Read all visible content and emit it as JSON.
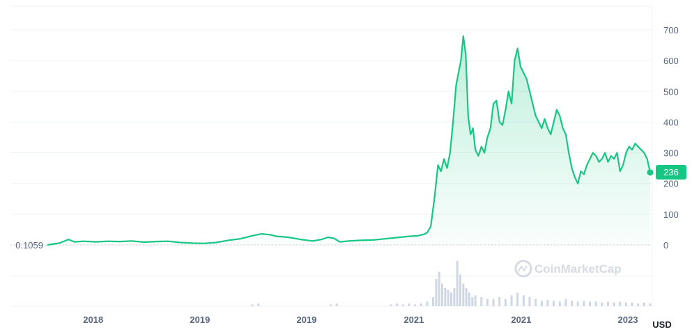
{
  "chart_data": {
    "type": "area",
    "title": "",
    "xlabel": "",
    "ylabel": "",
    "currency": "USD",
    "watermark": "CoinMarketCap",
    "start_label": "0.1059",
    "last_value_label": "236",
    "ylim": [
      -200,
      760
    ],
    "y_ticks": [
      0,
      100,
      200,
      300,
      400,
      500,
      600,
      700
    ],
    "x_tick_labels": [
      "2018",
      "2019",
      "2019",
      "2021",
      "2021",
      "2023"
    ],
    "x_range": [
      0,
      100
    ],
    "x_ticks": [
      7.6,
      25.3,
      43.0,
      60.8,
      78.6,
      96.3
    ],
    "colors": {
      "line": "#16c784",
      "badge": "#16c784",
      "volume": "#cfd6e4",
      "grid": "#eff2f5"
    },
    "series": [
      {
        "values": [
          [
            0,
            0
          ],
          [
            2,
            6
          ],
          [
            3.5,
            18
          ],
          [
            4.5,
            10
          ],
          [
            6,
            12
          ],
          [
            8,
            10
          ],
          [
            10,
            12
          ],
          [
            12,
            11
          ],
          [
            14,
            13
          ],
          [
            16,
            9
          ],
          [
            18,
            11
          ],
          [
            20,
            12
          ],
          [
            22,
            8
          ],
          [
            24,
            6
          ],
          [
            26,
            5
          ],
          [
            28,
            8
          ],
          [
            30,
            15
          ],
          [
            32,
            20
          ],
          [
            34,
            30
          ],
          [
            35.5,
            36
          ],
          [
            37,
            33
          ],
          [
            38,
            28
          ],
          [
            40,
            25
          ],
          [
            42,
            18
          ],
          [
            44,
            13
          ],
          [
            45.5,
            18
          ],
          [
            46.5,
            25
          ],
          [
            47.5,
            22
          ],
          [
            48.5,
            10
          ],
          [
            50,
            13
          ],
          [
            52,
            15
          ],
          [
            54,
            16
          ],
          [
            56,
            20
          ],
          [
            58,
            24
          ],
          [
            60,
            28
          ],
          [
            61.5,
            30
          ],
          [
            62.5,
            35
          ],
          [
            63,
            40
          ],
          [
            63.6,
            60
          ],
          [
            64.2,
            150
          ],
          [
            64.8,
            260
          ],
          [
            65.3,
            240
          ],
          [
            65.8,
            280
          ],
          [
            66.3,
            250
          ],
          [
            66.8,
            300
          ],
          [
            67.3,
            400
          ],
          [
            67.8,
            520
          ],
          [
            68.2,
            560
          ],
          [
            68.6,
            600
          ],
          [
            69,
            680
          ],
          [
            69.4,
            620
          ],
          [
            69.8,
            420
          ],
          [
            70.2,
            360
          ],
          [
            70.6,
            380
          ],
          [
            71,
            310
          ],
          [
            71.5,
            290
          ],
          [
            72,
            320
          ],
          [
            72.5,
            300
          ],
          [
            73,
            350
          ],
          [
            73.5,
            380
          ],
          [
            74,
            460
          ],
          [
            74.5,
            470
          ],
          [
            75,
            400
          ],
          [
            75.5,
            390
          ],
          [
            76,
            440
          ],
          [
            76.5,
            500
          ],
          [
            77,
            460
          ],
          [
            77.5,
            600
          ],
          [
            78,
            640
          ],
          [
            78.5,
            580
          ],
          [
            79,
            560
          ],
          [
            79.5,
            540
          ],
          [
            80,
            500
          ],
          [
            80.5,
            460
          ],
          [
            81,
            420
          ],
          [
            81.5,
            400
          ],
          [
            82,
            380
          ],
          [
            82.5,
            410
          ],
          [
            83,
            380
          ],
          [
            83.5,
            360
          ],
          [
            84,
            400
          ],
          [
            84.5,
            440
          ],
          [
            85,
            420
          ],
          [
            85.5,
            380
          ],
          [
            86,
            360
          ],
          [
            86.5,
            300
          ],
          [
            87,
            250
          ],
          [
            87.5,
            220
          ],
          [
            88,
            200
          ],
          [
            88.5,
            240
          ],
          [
            89,
            230
          ],
          [
            89.5,
            260
          ],
          [
            90,
            280
          ],
          [
            90.5,
            300
          ],
          [
            91,
            290
          ],
          [
            91.5,
            270
          ],
          [
            92,
            280
          ],
          [
            92.5,
            300
          ],
          [
            93,
            270
          ],
          [
            93.5,
            290
          ],
          [
            94,
            280
          ],
          [
            94.5,
            300
          ],
          [
            95,
            240
          ],
          [
            95.5,
            260
          ],
          [
            96,
            300
          ],
          [
            96.5,
            320
          ],
          [
            97,
            310
          ],
          [
            97.5,
            330
          ],
          [
            98,
            320
          ],
          [
            98.5,
            310
          ],
          [
            99,
            300
          ],
          [
            99.5,
            280
          ],
          [
            100,
            236
          ]
        ]
      }
    ],
    "volume": [
      [
        34,
        2
      ],
      [
        35,
        3
      ],
      [
        47,
        2
      ],
      [
        48,
        3
      ],
      [
        57,
        2
      ],
      [
        58,
        3
      ],
      [
        59,
        2
      ],
      [
        60,
        3
      ],
      [
        61,
        2
      ],
      [
        62,
        3
      ],
      [
        63,
        5
      ],
      [
        64,
        10
      ],
      [
        64.5,
        30
      ],
      [
        65,
        38
      ],
      [
        65.5,
        25
      ],
      [
        66,
        20
      ],
      [
        66.5,
        18
      ],
      [
        67,
        15
      ],
      [
        67.5,
        20
      ],
      [
        68,
        50
      ],
      [
        68.5,
        35
      ],
      [
        69,
        25
      ],
      [
        69.5,
        20
      ],
      [
        70,
        15
      ],
      [
        70.5,
        10
      ],
      [
        71,
        12
      ],
      [
        72,
        10
      ],
      [
        73,
        8
      ],
      [
        74,
        8
      ],
      [
        75,
        10
      ],
      [
        76,
        8
      ],
      [
        77,
        12
      ],
      [
        78,
        15
      ],
      [
        79,
        12
      ],
      [
        80,
        10
      ],
      [
        81,
        8
      ],
      [
        82,
        6
      ],
      [
        83,
        7
      ],
      [
        84,
        6
      ],
      [
        85,
        5
      ],
      [
        86,
        8
      ],
      [
        87,
        6
      ],
      [
        88,
        5
      ],
      [
        89,
        6
      ],
      [
        90,
        5
      ],
      [
        91,
        5
      ],
      [
        92,
        4
      ],
      [
        93,
        5
      ],
      [
        94,
        4
      ],
      [
        95,
        5
      ],
      [
        96,
        4
      ],
      [
        97,
        4
      ],
      [
        98,
        3
      ],
      [
        99,
        4
      ],
      [
        100,
        3
      ]
    ]
  }
}
